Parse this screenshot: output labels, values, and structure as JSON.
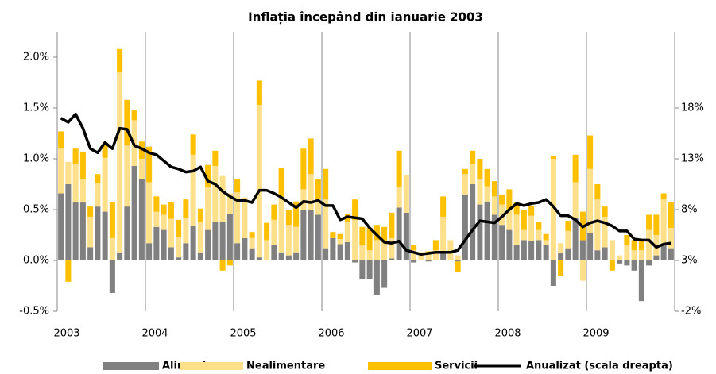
{
  "chart_data": {
    "type": "bar",
    "title": "Inflația începând din ianuarie 2003",
    "categories": [
      "2003",
      null,
      null,
      null,
      null,
      null,
      null,
      null,
      null,
      null,
      null,
      null,
      "2004",
      null,
      null,
      null,
      null,
      null,
      null,
      null,
      null,
      null,
      null,
      null,
      "2005",
      null,
      null,
      null,
      null,
      null,
      null,
      null,
      null,
      null,
      null,
      null,
      "2006",
      null,
      null,
      null,
      null,
      null,
      null,
      null,
      null,
      null,
      null,
      null,
      "2007",
      null,
      null,
      null,
      null,
      null,
      null,
      null,
      null,
      null,
      null,
      null,
      "2008",
      null,
      null,
      null,
      null,
      null,
      null,
      null,
      null,
      null,
      null,
      null,
      "2009",
      null,
      null,
      null,
      null,
      null,
      null,
      null,
      null,
      null,
      null,
      null
    ],
    "stacked": true,
    "series": [
      {
        "name": "Alimente",
        "color": "#808080",
        "values": [
          0.66,
          0.75,
          0.57,
          0.57,
          0.13,
          0.53,
          0.48,
          -0.32,
          0.08,
          0.53,
          0.93,
          0.8,
          0.17,
          0.33,
          0.3,
          0.13,
          0.03,
          0.17,
          0.34,
          0.08,
          0.3,
          0.38,
          0.38,
          0.46,
          0.17,
          0.22,
          0.12,
          0.03,
          0.0,
          0.15,
          0.08,
          0.05,
          0.08,
          0.5,
          0.5,
          0.45,
          0.12,
          0.22,
          0.16,
          0.18,
          -0.02,
          -0.18,
          -0.18,
          -0.34,
          -0.27,
          0.02,
          0.52,
          0.47,
          -0.02,
          0.0,
          -0.01,
          0.0,
          0.08,
          0.0,
          -0.01,
          0.65,
          0.75,
          0.55,
          0.58,
          0.45,
          0.35,
          0.3,
          0.15,
          0.2,
          0.19,
          0.2,
          0.15,
          -0.25,
          0.07,
          0.12,
          0.42,
          0.2,
          0.27,
          0.1,
          0.13,
          0.0,
          -0.03,
          -0.05,
          -0.1,
          -0.4,
          -0.05,
          0.05,
          0.15,
          0.12
        ]
      },
      {
        "name": "Nealimentare",
        "color": "#ffe08a",
        "values": [
          0.44,
          0.22,
          0.38,
          0.23,
          0.3,
          0.23,
          0.53,
          0.22,
          1.77,
          0.6,
          0.45,
          0.2,
          0.6,
          0.15,
          0.15,
          0.28,
          0.2,
          0.25,
          0.7,
          0.3,
          0.42,
          0.55,
          0.45,
          0.2,
          0.5,
          0.4,
          0.1,
          1.5,
          0.2,
          0.25,
          0.55,
          0.3,
          0.25,
          0.2,
          0.35,
          0.15,
          0.48,
          0.0,
          0.05,
          0.2,
          0.4,
          0.15,
          0.1,
          0.2,
          0.18,
          0.2,
          0.2,
          0.37,
          0.1,
          0.05,
          0.06,
          0.1,
          0.35,
          0.2,
          0.05,
          0.2,
          0.2,
          0.25,
          0.15,
          0.18,
          0.2,
          0.2,
          0.3,
          0.1,
          0.25,
          0.1,
          0.05,
          1.0,
          0.1,
          0.17,
          0.35,
          -0.2,
          0.63,
          0.5,
          0.3,
          0.2,
          0.05,
          0.15,
          0.1,
          0.1,
          0.3,
          0.2,
          0.45,
          0.2
        ]
      },
      {
        "name": "Servicii",
        "color": "#ffc000",
        "values": [
          0.17,
          -0.21,
          0.15,
          0.27,
          0.1,
          0.09,
          0.15,
          0.35,
          0.23,
          0.45,
          0.1,
          0.17,
          0.35,
          0.15,
          0.1,
          0.16,
          0.17,
          0.18,
          0.2,
          0.13,
          0.22,
          0.15,
          -0.1,
          -0.05,
          0.13,
          0.0,
          0.06,
          0.24,
          0.17,
          0.15,
          0.28,
          0.15,
          0.25,
          0.4,
          0.35,
          0.2,
          0.3,
          0.06,
          0.05,
          0.08,
          0.2,
          0.18,
          0.22,
          0.15,
          0.15,
          0.25,
          0.36,
          0.0,
          0.05,
          0.03,
          0.03,
          0.1,
          0.2,
          0.0,
          -0.1,
          0.05,
          0.13,
          0.2,
          0.17,
          0.15,
          0.1,
          0.2,
          0.12,
          0.2,
          0.1,
          0.08,
          0.06,
          0.03,
          -0.15,
          0.1,
          0.27,
          0.28,
          0.33,
          0.15,
          0.1,
          -0.1,
          0.0,
          0.1,
          0.1,
          0.1,
          0.15,
          0.2,
          0.06,
          0.25
        ]
      },
      {
        "name": "Anualizat (scala dreapta)",
        "color": "#000000",
        "type": "line",
        "axis": "y2",
        "values": [
          17.0,
          16.6,
          17.4,
          16.0,
          14.0,
          13.6,
          14.6,
          14.0,
          16.0,
          15.9,
          14.3,
          14.0,
          13.6,
          13.4,
          12.8,
          12.2,
          12.0,
          11.7,
          11.8,
          12.2,
          10.8,
          10.5,
          9.8,
          9.3,
          8.9,
          8.9,
          8.7,
          9.9,
          9.9,
          9.6,
          9.2,
          8.7,
          8.2,
          8.8,
          8.7,
          8.9,
          8.4,
          8.4,
          7.0,
          7.3,
          7.2,
          7.1,
          6.2,
          5.5,
          4.8,
          4.7,
          4.9,
          4.0,
          3.8,
          3.6,
          3.7,
          3.8,
          3.8,
          3.8,
          4.0,
          5.0,
          6.0,
          6.9,
          6.8,
          6.7,
          7.3,
          8.0,
          8.6,
          8.4,
          8.6,
          8.7,
          9.0,
          8.3,
          7.4,
          7.4,
          7.0,
          6.3,
          6.7,
          6.9,
          6.7,
          6.4,
          5.9,
          5.9,
          5.1,
          5.0,
          5.0,
          4.3,
          4.6,
          4.7
        ]
      }
    ],
    "ylim": [
      -0.5,
      2.25
    ],
    "yticks": [
      {
        "value": -0.5,
        "label": "-0.5%"
      },
      {
        "value": 0,
        "label": "0.0%"
      },
      {
        "value": 0.5,
        "label": "0.5%"
      },
      {
        "value": 1,
        "label": "1.0%"
      },
      {
        "value": 1.5,
        "label": "1.5%"
      },
      {
        "value": 2,
        "label": "2.0%"
      }
    ],
    "y2lim": [
      -2,
      25.5
    ],
    "y2ticks": [
      {
        "value": -2,
        "label": "-2%"
      },
      {
        "value": 3,
        "label": "3%"
      },
      {
        "value": 8,
        "label": "8%"
      },
      {
        "value": 13,
        "label": "13%"
      },
      {
        "value": 18,
        "label": "18%"
      }
    ],
    "grid": true,
    "legend": "bottom"
  }
}
